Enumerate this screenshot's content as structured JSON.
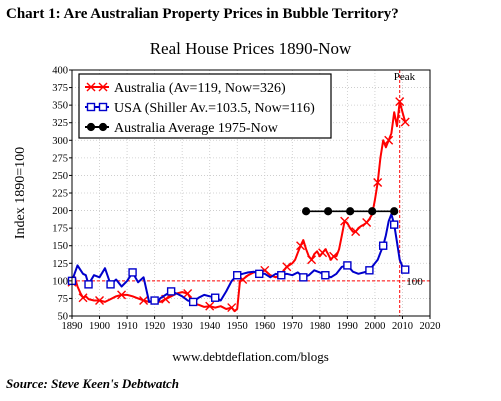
{
  "header": {
    "heading": "Chart 1:  Are Australian Property Prices in Bubble Territory?",
    "website": "www.debtdeflation.com/blogs",
    "source": "Source: Steve Keen's Debtwatch"
  },
  "chart_data": {
    "type": "line",
    "title": "Real House Prices 1890-Now",
    "xlabel": "",
    "ylabel": "Index 1890=100",
    "xlim": [
      1890,
      2020
    ],
    "ylim": [
      50,
      400
    ],
    "x_ticks": [
      "1890",
      "1900",
      "1910",
      "1920",
      "1930",
      "1940",
      "1950",
      "1960",
      "1970",
      "1980",
      "1990",
      "2000",
      "2010",
      "2020"
    ],
    "y_ticks": [
      "50",
      "75",
      "100",
      "125",
      "150",
      "175",
      "200",
      "225",
      "250",
      "275",
      "300",
      "325",
      "350",
      "375",
      "400"
    ],
    "grid": true,
    "legend_position": "top-left",
    "annotations": [
      {
        "text": "Peak",
        "x": 2009,
        "y": 390
      },
      {
        "text": "100",
        "x": 2011,
        "y": 100
      }
    ],
    "reference_lines": {
      "vertical_x": 2009,
      "horizontal_y": 100
    },
    "series": [
      {
        "name": "Australia (Av=119, Now=326)",
        "color": "#ff0000",
        "marker": "x",
        "x": [
          1890,
          1891,
          1892,
          1893,
          1894,
          1895,
          1896,
          1898,
          1900,
          1902,
          1904,
          1906,
          1908,
          1910,
          1912,
          1914,
          1916,
          1918,
          1920,
          1922,
          1924,
          1926,
          1928,
          1930,
          1932,
          1934,
          1936,
          1938,
          1940,
          1942,
          1944,
          1946,
          1948,
          1949,
          1950,
          1951,
          1952,
          1954,
          1956,
          1958,
          1960,
          1962,
          1964,
          1966,
          1968,
          1970,
          1971,
          1972,
          1973,
          1974,
          1975,
          1976,
          1977,
          1978,
          1979,
          1980,
          1981,
          1982,
          1983,
          1984,
          1985,
          1986,
          1987,
          1988,
          1989,
          1990,
          1991,
          1992,
          1993,
          1994,
          1995,
          1996,
          1997,
          1998,
          1999,
          2000,
          2001,
          2002,
          2003,
          2004,
          2005,
          2006,
          2007,
          2008,
          2009,
          2010,
          2011
        ],
        "y": [
          98,
          105,
          92,
          83,
          76,
          78,
          74,
          72,
          72,
          70,
          74,
          78,
          80,
          80,
          78,
          75,
          72,
          70,
          72,
          70,
          74,
          78,
          82,
          84,
          82,
          68,
          66,
          63,
          64,
          62,
          64,
          60,
          62,
          57,
          60,
          100,
          102,
          108,
          112,
          114,
          115,
          108,
          105,
          110,
          120,
          125,
          130,
          140,
          150,
          158,
          145,
          135,
          130,
          138,
          142,
          135,
          140,
          145,
          138,
          130,
          135,
          135,
          145,
          165,
          185,
          182,
          175,
          170,
          170,
          175,
          178,
          180,
          183,
          188,
          195,
          215,
          240,
          275,
          300,
          290,
          300,
          310,
          340,
          320,
          355,
          340,
          326
        ]
      },
      {
        "name": "USA (Shiller Av.=103.5, Now=116)",
        "color": "#0000cc",
        "marker": "square",
        "x": [
          1890,
          1892,
          1894,
          1895,
          1896,
          1898,
          1900,
          1902,
          1904,
          1906,
          1908,
          1910,
          1912,
          1914,
          1916,
          1918,
          1920,
          1921,
          1922,
          1924,
          1926,
          1928,
          1930,
          1932,
          1934,
          1936,
          1938,
          1940,
          1942,
          1944,
          1946,
          1948,
          1950,
          1952,
          1954,
          1956,
          1958,
          1960,
          1962,
          1964,
          1966,
          1968,
          1970,
          1972,
          1974,
          1976,
          1978,
          1980,
          1982,
          1984,
          1986,
          1988,
          1990,
          1992,
          1994,
          1996,
          1998,
          2000,
          2001,
          2002,
          2003,
          2004,
          2005,
          2006,
          2007,
          2008,
          2009,
          2010,
          2011
        ],
        "y": [
          100,
          122,
          110,
          108,
          95,
          108,
          105,
          118,
          95,
          102,
          92,
          100,
          112,
          98,
          105,
          70,
          72,
          68,
          75,
          80,
          85,
          82,
          78,
          72,
          70,
          76,
          80,
          78,
          76,
          72,
          85,
          100,
          108,
          110,
          112,
          113,
          110,
          110,
          105,
          110,
          108,
          110,
          108,
          112,
          105,
          108,
          115,
          112,
          108,
          105,
          110,
          120,
          122,
          113,
          110,
          112,
          115,
          125,
          130,
          140,
          150,
          165,
          185,
          195,
          180,
          155,
          130,
          120,
          116
        ]
      },
      {
        "name": "Australia Average 1975-Now",
        "color": "#000000",
        "marker": "circle",
        "x": [
          1975,
          1983,
          1991,
          1999,
          2007
        ],
        "y": [
          199,
          199,
          199,
          199,
          199
        ]
      }
    ]
  }
}
